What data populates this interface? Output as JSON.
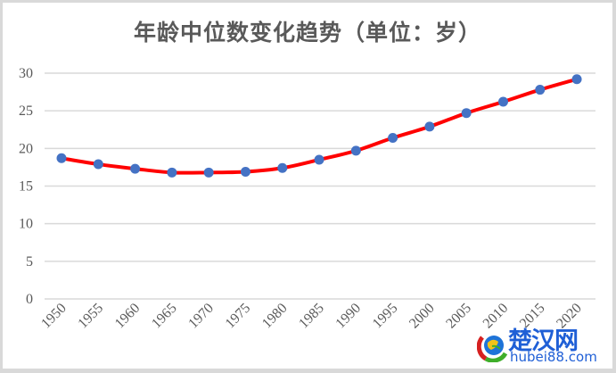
{
  "chart_data": {
    "type": "line",
    "title": "年龄中位数变化趋势（单位：岁）",
    "xlabel": "",
    "ylabel": "",
    "categories": [
      "1950",
      "1955",
      "1960",
      "1965",
      "1970",
      "1975",
      "1980",
      "1985",
      "1990",
      "1995",
      "2000",
      "2005",
      "2010",
      "2015",
      "2020"
    ],
    "series": [
      {
        "name": "年龄中位数",
        "values": [
          18.7,
          17.9,
          17.3,
          16.8,
          16.8,
          16.9,
          17.4,
          18.5,
          19.7,
          21.4,
          22.9,
          24.7,
          26.2,
          27.8,
          29.2
        ],
        "line_color": "#ff0000",
        "marker_color": "#4472c4"
      }
    ],
    "ylim": [
      0,
      30
    ],
    "yticks": [
      0,
      5,
      10,
      15,
      20,
      25,
      30
    ],
    "grid": true,
    "legend": "none",
    "smooth": true
  },
  "watermark": {
    "cn": "楚汉网",
    "en": "hubei88.com"
  }
}
